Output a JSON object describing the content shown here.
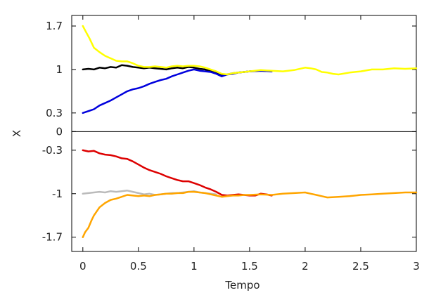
{
  "chart_data": {
    "type": "line",
    "title": "",
    "xlabel": "Tempo",
    "ylabel": "X",
    "xlim": [
      -0.1,
      3
    ],
    "ylim": [
      -1.93,
      1.87
    ],
    "grid": false,
    "legend": "none",
    "x_ticks": [
      {
        "value": 0,
        "label": "0"
      },
      {
        "value": 0.5,
        "label": "0.5"
      },
      {
        "value": 1,
        "label": "1"
      },
      {
        "value": 1.5,
        "label": "1.5"
      },
      {
        "value": 2,
        "label": "2"
      },
      {
        "value": 2.5,
        "label": "2.5"
      },
      {
        "value": 3,
        "label": "3"
      }
    ],
    "y_ticks": [
      {
        "value": 1.7,
        "label": "1.7"
      },
      {
        "value": 1,
        "label": "1"
      },
      {
        "value": 0.3,
        "label": "0.3"
      },
      {
        "value": 0,
        "label": "0"
      },
      {
        "value": -0.3,
        "label": "-0.3"
      },
      {
        "value": -1,
        "label": "-1"
      },
      {
        "value": -1.7,
        "label": "-1.7"
      }
    ],
    "zero_line": 0,
    "series": [
      {
        "color": "#000000",
        "x": [
          0,
          0.05,
          0.1,
          0.15,
          0.2,
          0.25,
          0.3,
          0.35,
          0.4,
          0.45,
          0.5,
          0.55,
          0.6,
          0.65,
          0.7,
          0.75,
          0.8,
          0.85,
          0.9,
          0.95,
          1.0,
          1.05,
          1.1,
          1.15,
          1.2,
          1.25,
          1.3,
          1.35,
          1.4,
          1.45,
          1.5,
          1.6,
          1.7
        ],
        "y": [
          1.0,
          1.01,
          1.0,
          1.03,
          1.02,
          1.04,
          1.03,
          1.07,
          1.06,
          1.04,
          1.03,
          1.02,
          1.03,
          1.02,
          1.01,
          1.0,
          1.02,
          1.03,
          1.02,
          1.04,
          1.03,
          1.01,
          1.0,
          0.97,
          0.94,
          0.9,
          0.92,
          0.94,
          0.95,
          0.96,
          0.97,
          0.98,
          0.97
        ]
      },
      {
        "color": "#0000dd",
        "x": [
          0,
          0.05,
          0.1,
          0.15,
          0.2,
          0.25,
          0.3,
          0.35,
          0.4,
          0.45,
          0.5,
          0.55,
          0.6,
          0.65,
          0.7,
          0.75,
          0.8,
          0.85,
          0.9,
          0.95,
          1.0,
          1.05,
          1.1,
          1.15,
          1.2,
          1.25,
          1.3,
          1.35,
          1.4,
          1.45,
          1.5,
          1.6,
          1.7
        ],
        "y": [
          0.3,
          0.33,
          0.36,
          0.42,
          0.46,
          0.5,
          0.55,
          0.6,
          0.65,
          0.68,
          0.7,
          0.73,
          0.77,
          0.8,
          0.83,
          0.85,
          0.89,
          0.92,
          0.95,
          0.98,
          1.0,
          0.98,
          0.97,
          0.96,
          0.93,
          0.89,
          0.92,
          0.93,
          0.95,
          0.96,
          0.97,
          0.98,
          0.97
        ]
      },
      {
        "color": "#ffff00",
        "x": [
          0,
          0.03,
          0.06,
          0.1,
          0.15,
          0.2,
          0.25,
          0.3,
          0.35,
          0.4,
          0.45,
          0.5,
          0.55,
          0.6,
          0.65,
          0.7,
          0.75,
          0.8,
          0.85,
          0.9,
          0.95,
          1.0,
          1.05,
          1.1,
          1.15,
          1.2,
          1.25,
          1.3,
          1.35,
          1.4,
          1.45,
          1.5,
          1.6,
          1.7,
          1.8,
          1.9,
          2.0,
          2.05,
          2.1,
          2.15,
          2.2,
          2.25,
          2.3,
          2.4,
          2.5,
          2.6,
          2.7,
          2.8,
          2.9,
          3.0
        ],
        "y": [
          1.7,
          1.6,
          1.5,
          1.35,
          1.28,
          1.22,
          1.18,
          1.14,
          1.13,
          1.13,
          1.1,
          1.06,
          1.04,
          1.04,
          1.05,
          1.04,
          1.03,
          1.05,
          1.06,
          1.05,
          1.06,
          1.06,
          1.05,
          1.03,
          1.0,
          0.97,
          0.93,
          0.92,
          0.94,
          0.95,
          0.96,
          0.97,
          0.99,
          0.98,
          0.97,
          0.99,
          1.03,
          1.02,
          1.0,
          0.96,
          0.95,
          0.93,
          0.92,
          0.95,
          0.97,
          1.0,
          1.0,
          1.02,
          1.01,
          1.02
        ]
      },
      {
        "color": "#dd0000",
        "x": [
          0,
          0.05,
          0.1,
          0.15,
          0.2,
          0.25,
          0.3,
          0.35,
          0.4,
          0.45,
          0.5,
          0.55,
          0.6,
          0.65,
          0.7,
          0.75,
          0.8,
          0.85,
          0.9,
          0.95,
          1.0,
          1.05,
          1.1,
          1.15,
          1.2,
          1.25,
          1.3,
          1.35,
          1.4,
          1.45,
          1.5,
          1.55,
          1.6,
          1.65,
          1.7
        ],
        "y": [
          -0.3,
          -0.32,
          -0.31,
          -0.35,
          -0.37,
          -0.38,
          -0.4,
          -0.43,
          -0.44,
          -0.48,
          -0.53,
          -0.58,
          -0.62,
          -0.65,
          -0.68,
          -0.72,
          -0.75,
          -0.78,
          -0.8,
          -0.8,
          -0.83,
          -0.86,
          -0.9,
          -0.93,
          -0.97,
          -1.02,
          -1.03,
          -1.02,
          -1.01,
          -1.02,
          -1.03,
          -1.03,
          -1.0,
          -1.01,
          -1.03
        ]
      },
      {
        "color": "#bbbbbb",
        "x": [
          0,
          0.05,
          0.1,
          0.15,
          0.2,
          0.25,
          0.3,
          0.35,
          0.4,
          0.45,
          0.5,
          0.55,
          0.6,
          0.65,
          0.7,
          0.75,
          0.8,
          0.85,
          0.9,
          0.95,
          1.0,
          1.05,
          1.1,
          1.15,
          1.2
        ],
        "y": [
          -1.0,
          -0.99,
          -0.98,
          -0.97,
          -0.98,
          -0.96,
          -0.97,
          -0.96,
          -0.95,
          -0.97,
          -0.99,
          -1.01,
          -1.0,
          -1.02,
          -1.01,
          -1.0,
          -0.99,
          -0.99,
          -0.98,
          -0.97,
          -0.96,
          -0.98,
          -0.99,
          -1.0,
          -1.01
        ]
      },
      {
        "color": "#ffa500",
        "x": [
          0,
          0.02,
          0.05,
          0.08,
          0.1,
          0.15,
          0.2,
          0.25,
          0.3,
          0.35,
          0.4,
          0.45,
          0.5,
          0.55,
          0.6,
          0.65,
          0.7,
          0.75,
          0.8,
          0.85,
          0.9,
          0.95,
          1.0,
          1.05,
          1.1,
          1.15,
          1.2,
          1.25,
          1.3,
          1.35,
          1.4,
          1.45,
          1.5,
          1.6,
          1.7,
          1.8,
          1.9,
          2.0,
          2.05,
          2.1,
          2.15,
          2.2,
          2.3,
          2.4,
          2.5,
          2.6,
          2.7,
          2.8,
          2.9,
          3.0
        ],
        "y": [
          -1.7,
          -1.62,
          -1.55,
          -1.42,
          -1.35,
          -1.22,
          -1.15,
          -1.1,
          -1.08,
          -1.05,
          -1.02,
          -1.03,
          -1.04,
          -1.03,
          -1.04,
          -1.02,
          -1.01,
          -1.0,
          -1.0,
          -0.99,
          -0.99,
          -0.97,
          -0.97,
          -0.98,
          -0.99,
          -1.01,
          -1.03,
          -1.05,
          -1.04,
          -1.03,
          -1.03,
          -1.02,
          -1.02,
          -1.01,
          -1.02,
          -1.0,
          -0.99,
          -0.98,
          -1.0,
          -1.02,
          -1.04,
          -1.06,
          -1.05,
          -1.04,
          -1.02,
          -1.01,
          -1.0,
          -0.99,
          -0.98,
          -0.98
        ]
      }
    ]
  }
}
